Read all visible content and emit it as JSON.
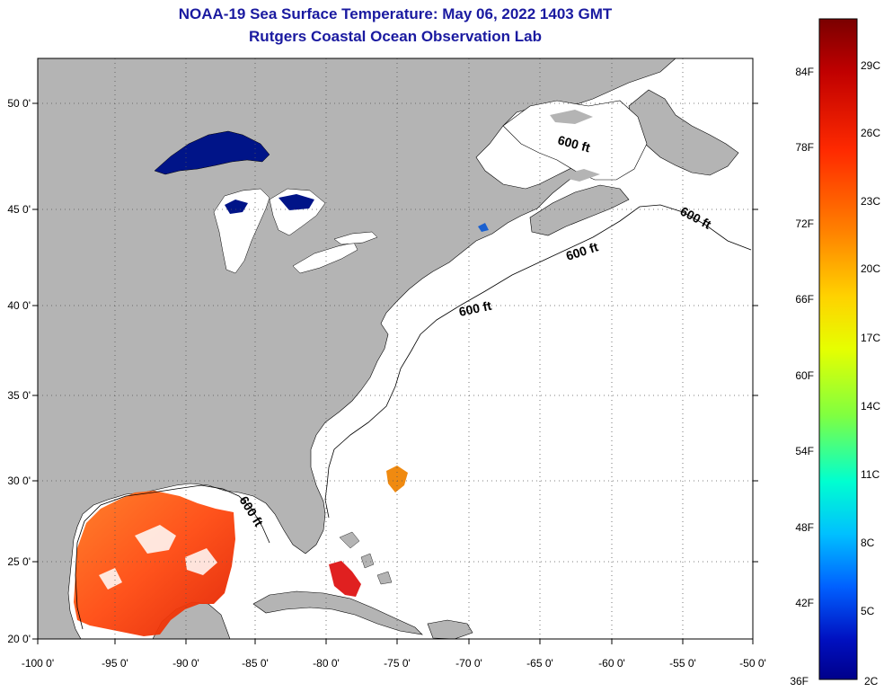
{
  "title": {
    "line1": "NOAA-19 Sea Surface Temperature:  May 06, 2022 1403 GMT",
    "line2": "Rutgers Coastal Ocean Observation Lab"
  },
  "map": {
    "lon_labels": [
      "-100 0'",
      "-95 0'",
      "-90 0'",
      "-85 0'",
      "-80 0'",
      "-75 0'",
      "-70 0'",
      "-65 0'",
      "-60 0'",
      "-55 0'",
      "-50 0'"
    ],
    "lat_labels": [
      "50 0'",
      "45 0'",
      "40 0'",
      "35 0'",
      "30 0'",
      "25 0'",
      "20 0'"
    ],
    "contour_labels": [
      "600 ft",
      "600 ft",
      "600 ft",
      "600 ft",
      "600 ft"
    ],
    "land_color": "#b4b4b4",
    "water_color": "#ffffff"
  },
  "colorbar": {
    "fahrenheit_labels": [
      "84F",
      "78F",
      "72F",
      "66F",
      "60F",
      "54F",
      "48F",
      "42F",
      "36F"
    ],
    "celsius_labels": [
      "29C",
      "26C",
      "23C",
      "20C",
      "17C",
      "14C",
      "11C",
      "8C",
      "5C",
      "2C"
    ],
    "gradient_colors": [
      "#7a0000",
      "#c00000",
      "#ff2a00",
      "#ff8000",
      "#ffd200",
      "#e6ff00",
      "#80ff40",
      "#00ffd0",
      "#00c0ff",
      "#0060ff",
      "#0010c0",
      "#00008a"
    ]
  }
}
